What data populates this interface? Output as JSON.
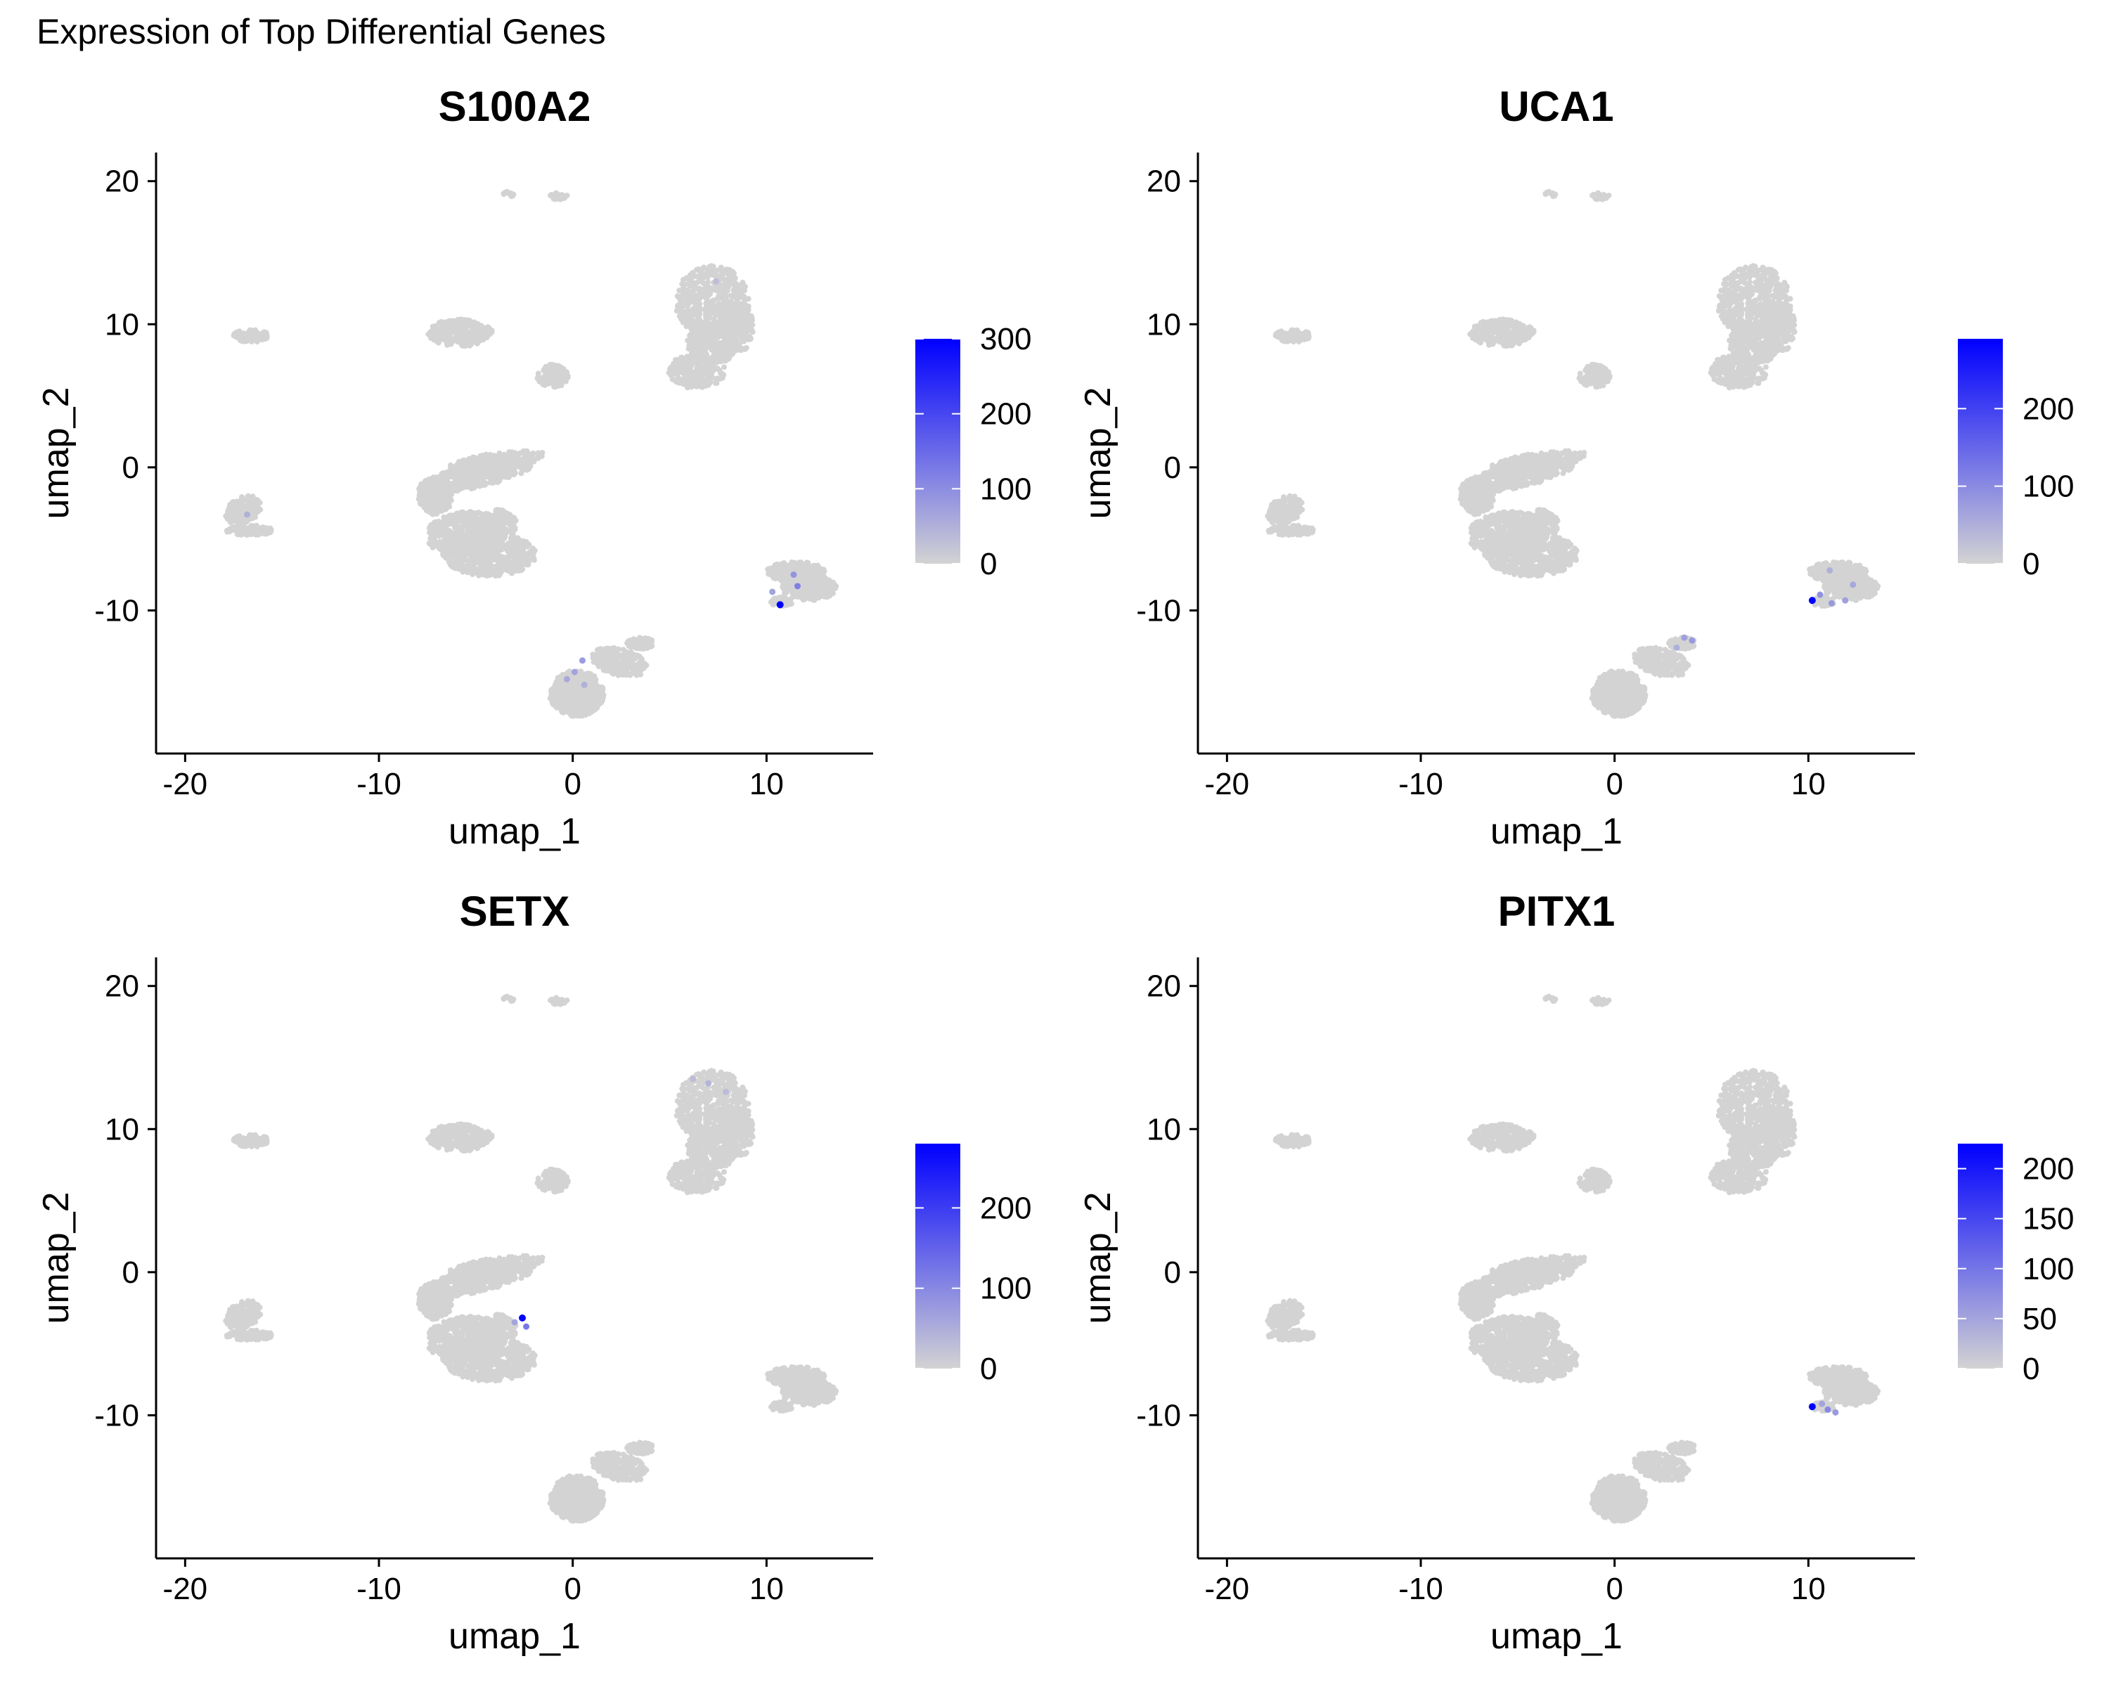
{
  "figure_title": "Expression of Top Differential Genes",
  "colors": {
    "low": "#d3d3d3",
    "high": "#0000ff",
    "axis": "#000000"
  },
  "chart_data": [
    {
      "type": "scatter",
      "title": "S100A2",
      "xlabel": "umap_1",
      "ylabel": "umap_2",
      "xlim": [
        -21.5,
        15.5
      ],
      "ylim": [
        -20,
        22
      ],
      "xticks": [
        -20,
        -10,
        0,
        10
      ],
      "yticks": [
        -10,
        0,
        10,
        20
      ],
      "grid": false,
      "legend": "colorbar-right",
      "colorbar": {
        "min": 0,
        "max": 300,
        "ticks": [
          0,
          100,
          200,
          300
        ]
      },
      "highlights": [
        {
          "x": 10.7,
          "y": -9.6,
          "value": 300
        },
        {
          "x": 11.6,
          "y": -8.3,
          "value": 120
        },
        {
          "x": 11.4,
          "y": -7.5,
          "value": 90
        },
        {
          "x": 10.3,
          "y": -8.7,
          "value": 70
        },
        {
          "x": 0.5,
          "y": -13.5,
          "value": 80
        },
        {
          "x": 0.1,
          "y": -14.3,
          "value": 70
        },
        {
          "x": -0.3,
          "y": -14.8,
          "value": 60
        },
        {
          "x": 0.6,
          "y": -15.2,
          "value": 50
        },
        {
          "x": -16.8,
          "y": -3.3,
          "value": 50
        },
        {
          "x": 7.4,
          "y": 13.0,
          "value": 30
        }
      ]
    },
    {
      "type": "scatter",
      "title": "UCA1",
      "xlabel": "umap_1",
      "ylabel": "umap_2",
      "xlim": [
        -21.5,
        15.5
      ],
      "ylim": [
        -20,
        22
      ],
      "xticks": [
        -20,
        -10,
        0,
        10
      ],
      "yticks": [
        -10,
        0,
        10,
        20
      ],
      "grid": false,
      "legend": "colorbar-right",
      "colorbar": {
        "min": 0,
        "max": 290,
        "ticks": [
          0,
          100,
          200
        ]
      },
      "highlights": [
        {
          "x": 10.2,
          "y": -9.3,
          "value": 290
        },
        {
          "x": 10.6,
          "y": -8.9,
          "value": 90
        },
        {
          "x": 11.2,
          "y": -9.5,
          "value": 80
        },
        {
          "x": 11.9,
          "y": -9.3,
          "value": 70
        },
        {
          "x": 12.3,
          "y": -8.2,
          "value": 60
        },
        {
          "x": 11.1,
          "y": -7.2,
          "value": 50
        },
        {
          "x": 3.6,
          "y": -11.9,
          "value": 70
        },
        {
          "x": 4.0,
          "y": -12.1,
          "value": 80
        },
        {
          "x": 3.2,
          "y": -12.6,
          "value": 50
        }
      ]
    },
    {
      "type": "scatter",
      "title": "SETX",
      "xlabel": "umap_1",
      "ylabel": "umap_2",
      "xlim": [
        -21.5,
        15.5
      ],
      "ylim": [
        -20,
        22
      ],
      "xticks": [
        -20,
        -10,
        0,
        10
      ],
      "yticks": [
        -10,
        0,
        10,
        20
      ],
      "grid": false,
      "legend": "colorbar-right",
      "colorbar": {
        "min": 0,
        "max": 280,
        "ticks": [
          0,
          100,
          200
        ]
      },
      "highlights": [
        {
          "x": -2.6,
          "y": -3.2,
          "value": 280
        },
        {
          "x": -2.4,
          "y": -3.8,
          "value": 120
        },
        {
          "x": -3.0,
          "y": -3.5,
          "value": 60
        },
        {
          "x": 7.0,
          "y": 13.2,
          "value": 40
        },
        {
          "x": 6.2,
          "y": 13.5,
          "value": 30
        },
        {
          "x": 7.9,
          "y": 12.6,
          "value": 30
        }
      ]
    },
    {
      "type": "scatter",
      "title": "PITX1",
      "xlabel": "umap_1",
      "ylabel": "umap_2",
      "xlim": [
        -21.5,
        15.5
      ],
      "ylim": [
        -20,
        22
      ],
      "xticks": [
        -20,
        -10,
        0,
        10
      ],
      "yticks": [
        -10,
        0,
        10,
        20
      ],
      "grid": false,
      "legend": "colorbar-right",
      "colorbar": {
        "min": 0,
        "max": 225,
        "ticks": [
          0,
          50,
          100,
          150,
          200
        ]
      },
      "highlights": [
        {
          "x": 10.2,
          "y": -9.4,
          "value": 225
        },
        {
          "x": 11.0,
          "y": -9.6,
          "value": 80
        },
        {
          "x": 11.4,
          "y": -9.8,
          "value": 60
        },
        {
          "x": 10.7,
          "y": -9.2,
          "value": 50
        }
      ]
    }
  ]
}
